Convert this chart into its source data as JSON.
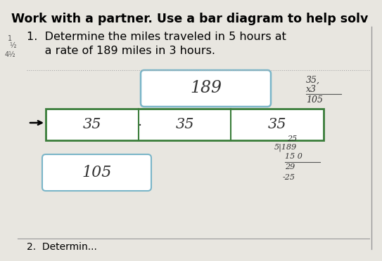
{
  "bg_color": "#d0cfc9",
  "title": "Work with a partner. Use a bar diagram to help solv",
  "title_fontsize": 12.5,
  "title_fontweight": "bold",
  "problem_line1": "1.  Determine the miles traveled in 5 hours at",
  "problem_line2": "     a rate of 189 miles in 3 hours.",
  "problem_fontsize": 11.5,
  "top_box_text": "189",
  "top_box_color": "#7ab5c8",
  "bar_border_color": "#3a7d3a",
  "bar_sections": [
    "35",
    "35",
    "35"
  ],
  "bottom_box_text": "105",
  "bottom_box_color": "#7ab5c8",
  "right_top_lines": [
    "35,",
    "x3",
    "105"
  ],
  "right_bottom_lines": [
    "25",
    "5|189",
    "15 0",
    "29",
    "-25"
  ],
  "left_margin_texts": [
    "1",
    "½",
    "4½"
  ],
  "page_bg": "#e8e6e0"
}
